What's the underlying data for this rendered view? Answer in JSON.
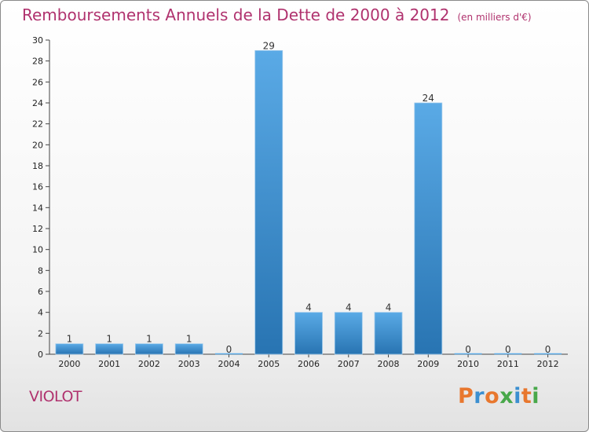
{
  "header": {
    "title": "Remboursements Annuels de la Dette de 2000 à 2012",
    "unit": "(en milliers d'€)"
  },
  "footer": {
    "commune": "VIOLOT",
    "logo": "Proxiti"
  },
  "colors": {
    "title": "#b0326e",
    "bar_top": "#5aaae6",
    "bar_bottom": "#2874b2",
    "logo_letters": [
      "#e8772e",
      "#3b8fd0",
      "#e8772e",
      "#48a84a",
      "#3b8fd0",
      "#e8772e",
      "#48a84a"
    ]
  },
  "chart_data": {
    "type": "bar",
    "title": "Remboursements Annuels de la Dette de 2000 à 2012",
    "categories": [
      "2000",
      "2001",
      "2002",
      "2003",
      "2004",
      "2005",
      "2006",
      "2007",
      "2008",
      "2009",
      "2010",
      "2011",
      "2012"
    ],
    "values": [
      1,
      1,
      1,
      1,
      0,
      29,
      4,
      4,
      4,
      24,
      0,
      0,
      0
    ],
    "ylim": [
      0,
      30
    ],
    "yticks": [
      0,
      2,
      4,
      6,
      8,
      10,
      12,
      14,
      16,
      18,
      20,
      22,
      24,
      26,
      28,
      30
    ],
    "grid": false
  }
}
